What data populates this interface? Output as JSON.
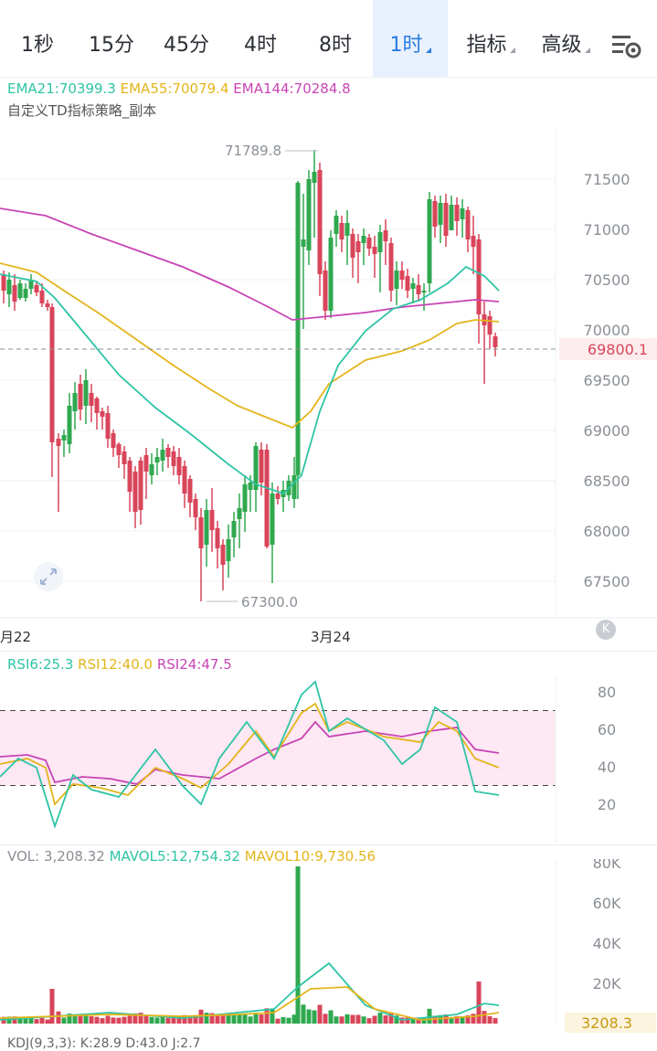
{
  "tabs": [
    {
      "label": "1秒",
      "active": false,
      "has_menu": false
    },
    {
      "label": "15分",
      "active": false,
      "has_menu": false
    },
    {
      "label": "45分",
      "active": false,
      "has_menu": false
    },
    {
      "label": "4时",
      "active": false,
      "has_menu": false
    },
    {
      "label": "8时",
      "active": false,
      "has_menu": false
    },
    {
      "label": "1时",
      "active": true,
      "has_menu": true
    },
    {
      "label": "指标",
      "active": false,
      "has_menu": true
    },
    {
      "label": "高级",
      "active": false,
      "has_menu": true
    }
  ],
  "settings_icon": "chart-settings-icon",
  "main": {
    "ema": [
      {
        "label": "EMA21:70399.3",
        "color": "#2ec4a5"
      },
      {
        "label": "EMA55:70079.4",
        "color": "#e3b51c"
      },
      {
        "label": "EMA144:70284.8",
        "color": "#c844b5"
      }
    ],
    "strategy": "自定义TD指标策略_副本",
    "high_label": "71789.8",
    "low_label": "67300.0",
    "last_price": "69800.1",
    "y_ticks": [
      "71500",
      "71000",
      "70500",
      "70000",
      "69500",
      "69000",
      "68500",
      "68000",
      "67500"
    ],
    "x_labels": [
      "月22",
      "3月24"
    ],
    "expand_icon": "expand-arrows-icon"
  },
  "rsi": {
    "labels": [
      {
        "label": "RSI6:25.3",
        "color": "#2ec4a5"
      },
      {
        "label": "RSI12:40.0",
        "color": "#e3b51c"
      },
      {
        "label": "RSI24:47.5",
        "color": "#c844b5"
      }
    ],
    "y_ticks": [
      "80",
      "60",
      "40",
      "20"
    ]
  },
  "vol": {
    "labels": [
      {
        "label": "VOL: 3,208.32",
        "color": "#8a8f96"
      },
      {
        "label": "MAVOL5:12,754.32",
        "color": "#2ec4a5"
      },
      {
        "label": "MAVOL10:9,730.56",
        "color": "#e3b51c"
      }
    ],
    "y_ticks": [
      "80K",
      "60K",
      "40K",
      "20K"
    ],
    "current": "3208.3"
  },
  "kdj_label": "KDJ(9,3,3): K:28.9  D:43.0  J:2.7",
  "colors": {
    "up": "#2fa84f",
    "down": "#d9455a",
    "accent": "#2a7de1"
  }
}
